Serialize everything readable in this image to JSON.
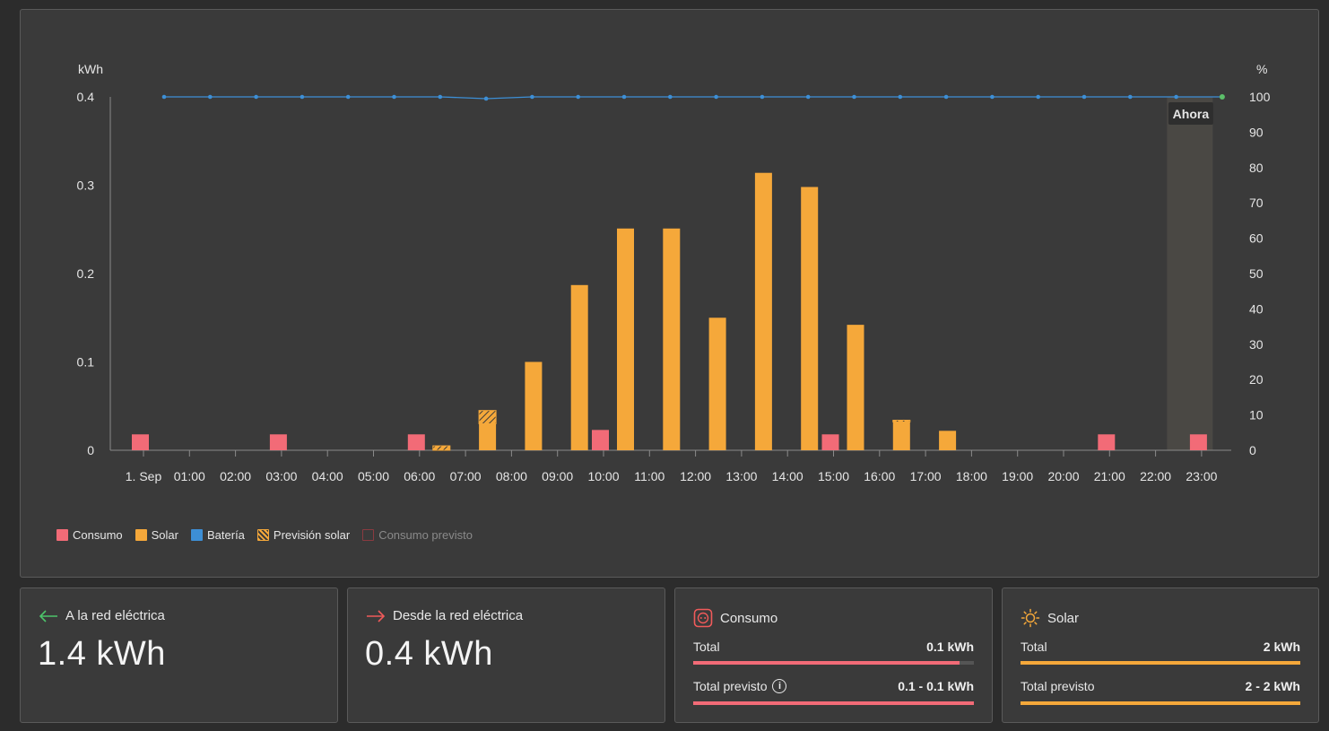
{
  "colors": {
    "consumo": "#f26b77",
    "solar": "#f5a83a",
    "bateria": "#3d8fd6",
    "prevision_solar": "#f5a83a",
    "consumo_previsto": "#8a3a40",
    "now_band": "#4a4844"
  },
  "chart_data": {
    "type": "bar",
    "left_unit": "kWh",
    "right_unit": "%",
    "y_left_ticks": [
      "0.4",
      "0.3",
      "0.2",
      "0.1",
      "0"
    ],
    "y_right_ticks": [
      "100",
      "90",
      "80",
      "70",
      "60",
      "50",
      "40",
      "30",
      "20",
      "10",
      "0"
    ],
    "ylim_left": [
      0,
      0.4
    ],
    "ylim_right": [
      0,
      100
    ],
    "x_labels": [
      "1. Sep",
      "01:00",
      "02:00",
      "03:00",
      "04:00",
      "05:00",
      "06:00",
      "07:00",
      "08:00",
      "09:00",
      "10:00",
      "11:00",
      "12:00",
      "13:00",
      "14:00",
      "15:00",
      "16:00",
      "17:00",
      "18:00",
      "19:00",
      "20:00",
      "21:00",
      "22:00",
      "23:00"
    ],
    "now_label": "Ahora",
    "series": [
      {
        "name": "Consumo",
        "values": [
          0.018,
          0,
          0,
          0.018,
          0,
          0,
          0.018,
          0,
          0,
          0,
          0.023,
          0,
          0,
          0,
          0,
          0.018,
          0,
          0,
          0,
          0,
          0,
          0.018,
          0,
          0.018
        ]
      },
      {
        "name": "Solar",
        "values": [
          0,
          0,
          0,
          0,
          0,
          0,
          0,
          0.03,
          0.1,
          0.187,
          0.251,
          0.251,
          0.15,
          0.314,
          0.298,
          0.142,
          0.032,
          0.022,
          0,
          0,
          0,
          0,
          0,
          0
        ]
      },
      {
        "name": "Previsión solar",
        "values": [
          0,
          0,
          0,
          0,
          0,
          0,
          0.005,
          0.015,
          0,
          0,
          0,
          0,
          0,
          0,
          0,
          0,
          0.002,
          0,
          0,
          0,
          0,
          0,
          0,
          0
        ]
      },
      {
        "name": "Batería",
        "values": [
          100,
          100,
          100,
          100,
          100,
          100,
          100,
          99.5,
          100,
          100,
          100,
          100,
          100,
          100,
          100,
          100,
          100,
          100,
          100,
          100,
          100,
          100,
          100,
          100
        ]
      }
    ],
    "legend": [
      "Consumo",
      "Solar",
      "Batería",
      "Previsión solar",
      "Consumo previsto"
    ]
  },
  "cards": {
    "to_grid": {
      "title": "A la red eléctrica",
      "value": "1.4 kWh"
    },
    "from_grid": {
      "title": "Desde la red eléctrica",
      "value": "0.4 kWh"
    },
    "consumo": {
      "title": "Consumo",
      "total_label": "Total",
      "total_value": "0.1 kWh",
      "total_fill": 0.95,
      "forecast_label": "Total previsto",
      "forecast_value": "0.1 - 0.1 kWh",
      "forecast_fill": 1.0
    },
    "solar": {
      "title": "Solar",
      "total_label": "Total",
      "total_value": "2 kWh",
      "total_fill": 1.0,
      "forecast_label": "Total previsto",
      "forecast_value": "2 - 2 kWh",
      "forecast_fill": 1.0
    }
  }
}
